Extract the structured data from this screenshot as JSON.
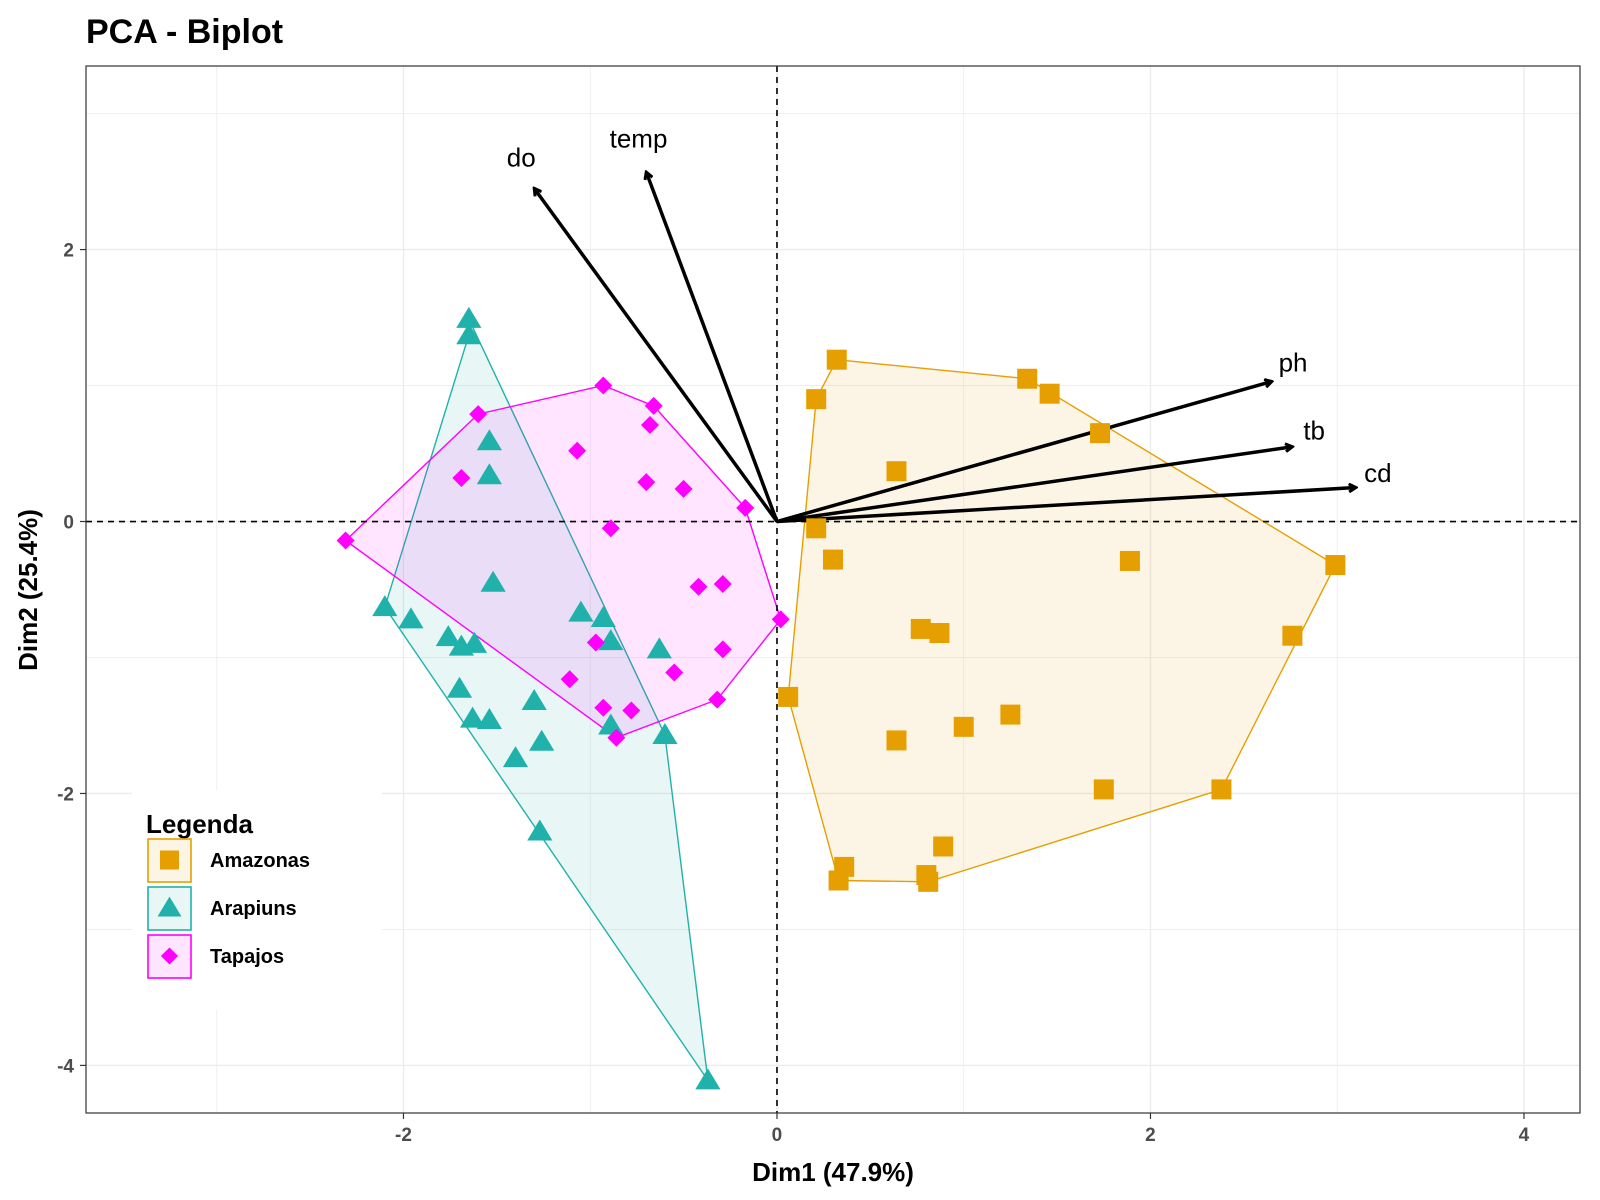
{
  "chart_data": {
    "type": "scatter",
    "title": "PCA - Biplot",
    "xlabel": "Dim1 (47.9%)",
    "ylabel": "Dim2 (25.4%)",
    "xlim": [
      -3.7,
      4.3
    ],
    "ylim": [
      -4.35,
      3.35
    ],
    "x_ticks": [
      -2,
      0,
      2,
      4
    ],
    "y_ticks": [
      -4,
      -2,
      0,
      2
    ],
    "x_tick_labels": [
      "-2",
      "0",
      "2",
      "4"
    ],
    "y_tick_labels": [
      "-4",
      "-2",
      "0",
      "2"
    ],
    "grid": true,
    "reference_lines": {
      "x": 0,
      "y": 0,
      "style": "dashed"
    },
    "legend": {
      "title": "Legenda",
      "position": "bottom-left"
    },
    "series": [
      {
        "name": "Amazonas",
        "marker": "square",
        "color": "#E69F00",
        "points": [
          [
            0.32,
            1.19
          ],
          [
            0.21,
            0.9
          ],
          [
            1.34,
            1.05
          ],
          [
            1.46,
            0.94
          ],
          [
            1.73,
            0.65
          ],
          [
            0.64,
            0.37
          ],
          [
            0.21,
            -0.05
          ],
          [
            0.3,
            -0.28
          ],
          [
            1.89,
            -0.29
          ],
          [
            2.99,
            -0.32
          ],
          [
            2.76,
            -0.84
          ],
          [
            0.77,
            -0.79
          ],
          [
            0.87,
            -0.82
          ],
          [
            0.06,
            -1.29
          ],
          [
            1.0,
            -1.51
          ],
          [
            1.25,
            -1.42
          ],
          [
            0.64,
            -1.61
          ],
          [
            1.75,
            -1.97
          ],
          [
            2.38,
            -1.97
          ],
          [
            0.89,
            -2.39
          ],
          [
            0.36,
            -2.54
          ],
          [
            0.33,
            -2.64
          ],
          [
            0.8,
            -2.6
          ],
          [
            0.81,
            -2.65
          ]
        ]
      },
      {
        "name": "Arapiuns",
        "marker": "triangle",
        "color": "#20B2AA",
        "points": [
          [
            -1.65,
            1.49
          ],
          [
            -1.65,
            1.37
          ],
          [
            -1.54,
            0.59
          ],
          [
            -1.54,
            0.34
          ],
          [
            -1.52,
            -0.45
          ],
          [
            -2.1,
            -0.63
          ],
          [
            -1.96,
            -0.72
          ],
          [
            -1.76,
            -0.85
          ],
          [
            -1.69,
            -0.92
          ],
          [
            -1.62,
            -0.9
          ],
          [
            -1.7,
            -1.23
          ],
          [
            -1.63,
            -1.45
          ],
          [
            -1.54,
            -1.46
          ],
          [
            -1.3,
            -1.32
          ],
          [
            -1.4,
            -1.74
          ],
          [
            -1.26,
            -1.62
          ],
          [
            -1.27,
            -2.28
          ],
          [
            -1.05,
            -0.67
          ],
          [
            -0.93,
            -0.71
          ],
          [
            -0.89,
            -0.88
          ],
          [
            -0.63,
            -0.94
          ],
          [
            -0.6,
            -1.57
          ],
          [
            -0.89,
            -1.5
          ],
          [
            -0.37,
            -4.11
          ]
        ]
      },
      {
        "name": "Tapajos",
        "marker": "diamond",
        "color": "#FF00FF",
        "points": [
          [
            -0.93,
            1.0
          ],
          [
            -0.66,
            0.85
          ],
          [
            -1.6,
            0.79
          ],
          [
            -0.68,
            0.71
          ],
          [
            -1.07,
            0.52
          ],
          [
            -1.69,
            0.32
          ],
          [
            -0.7,
            0.29
          ],
          [
            -0.5,
            0.24
          ],
          [
            -0.17,
            0.1
          ],
          [
            -0.89,
            -0.05
          ],
          [
            -2.31,
            -0.14
          ],
          [
            -0.42,
            -0.48
          ],
          [
            -0.29,
            -0.46
          ],
          [
            0.02,
            -0.72
          ],
          [
            -0.97,
            -0.89
          ],
          [
            -0.29,
            -0.94
          ],
          [
            -0.55,
            -1.11
          ],
          [
            -1.11,
            -1.16
          ],
          [
            -0.32,
            -1.31
          ],
          [
            -0.78,
            -1.39
          ],
          [
            -0.93,
            -1.37
          ],
          [
            -0.86,
            -1.59
          ]
        ]
      }
    ],
    "hulls": {
      "Amazonas": [
        [
          0.32,
          1.19
        ],
        [
          1.34,
          1.05
        ],
        [
          2.99,
          -0.32
        ],
        [
          2.38,
          -1.97
        ],
        [
          0.81,
          -2.65
        ],
        [
          0.33,
          -2.64
        ],
        [
          0.06,
          -1.29
        ],
        [
          0.21,
          0.9
        ]
      ],
      "Arapiuns": [
        [
          -1.65,
          1.49
        ],
        [
          -0.6,
          -1.57
        ],
        [
          -0.37,
          -4.11
        ],
        [
          -2.1,
          -0.63
        ],
        [
          -1.65,
          1.37
        ]
      ],
      "Tapajos": [
        [
          -0.93,
          1.0
        ],
        [
          -0.66,
          0.85
        ],
        [
          -0.17,
          0.1
        ],
        [
          0.02,
          -0.72
        ],
        [
          -0.32,
          -1.31
        ],
        [
          -0.86,
          -1.59
        ],
        [
          -2.31,
          -0.14
        ],
        [
          -1.6,
          0.79
        ]
      ]
    },
    "variables": [
      {
        "name": "do",
        "x": -1.3,
        "y": 2.45
      },
      {
        "name": "temp",
        "x": -0.7,
        "y": 2.57
      },
      {
        "name": "ph",
        "x": 2.65,
        "y": 1.03
      },
      {
        "name": "tb",
        "x": 2.76,
        "y": 0.55
      },
      {
        "name": "cd",
        "x": 3.1,
        "y": 0.25
      }
    ]
  }
}
